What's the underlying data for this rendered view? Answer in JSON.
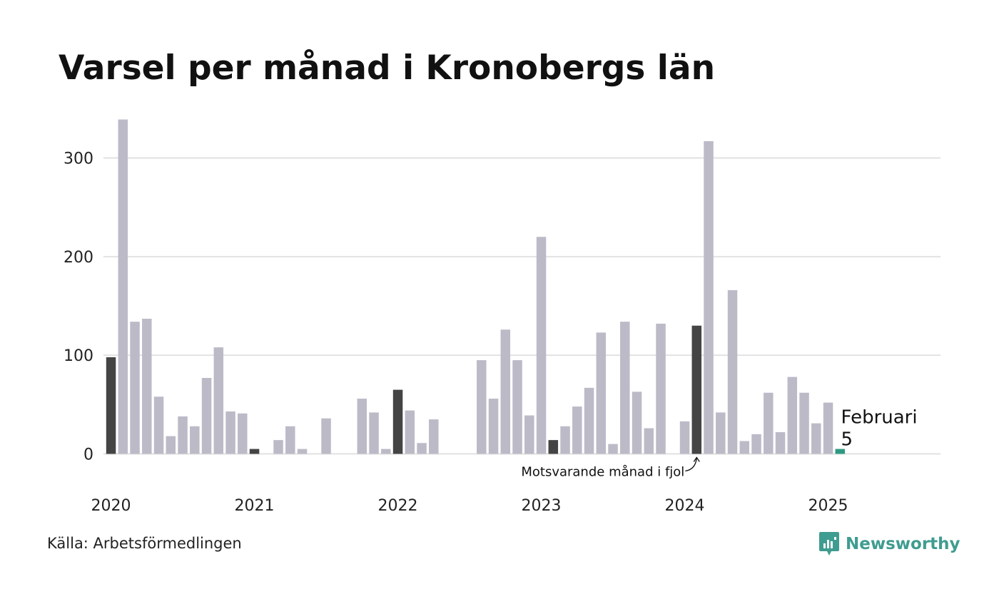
{
  "title": "Varsel per månad i Kronobergs län",
  "source": "Källa: Arbetsförmedlingen",
  "brand": {
    "name": "Newsworthy",
    "icon": "newsworthy-logo-icon"
  },
  "colors": {
    "bar": "#bdbac8",
    "highlight": "#444444",
    "current": "#2e9a82",
    "grid": "#e2e2e2",
    "brand": "#3f9c90"
  },
  "chart_data": {
    "type": "bar",
    "title": "Varsel per månad i Kronobergs län",
    "xlabel": "",
    "ylabel": "",
    "ylim": [
      0,
      340
    ],
    "yticks": [
      0,
      100,
      200,
      300
    ],
    "xticks": [
      "2020",
      "2021",
      "2022",
      "2023",
      "2024",
      "2025"
    ],
    "grid": true,
    "start": "2020-01",
    "months_per_year": 12,
    "total_slots": 72,
    "values": [
      98,
      339,
      134,
      137,
      58,
      18,
      38,
      28,
      77,
      108,
      43,
      41,
      5,
      0,
      14,
      28,
      5,
      0,
      36,
      0,
      0,
      56,
      42,
      5,
      65,
      44,
      11,
      35,
      0,
      0,
      0,
      95,
      56,
      126,
      95,
      39,
      220,
      14,
      28,
      48,
      67,
      123,
      10,
      134,
      63,
      26,
      132,
      0,
      33,
      130,
      317,
      42,
      166,
      13,
      20,
      62,
      22,
      78,
      62,
      31,
      52,
      5
    ],
    "highlight_indices": [
      0,
      12,
      24,
      37,
      49
    ],
    "current_index": 61,
    "annotation": "Motsvarande månad i fjol",
    "callout": {
      "label": "Februari",
      "value": "5"
    }
  }
}
